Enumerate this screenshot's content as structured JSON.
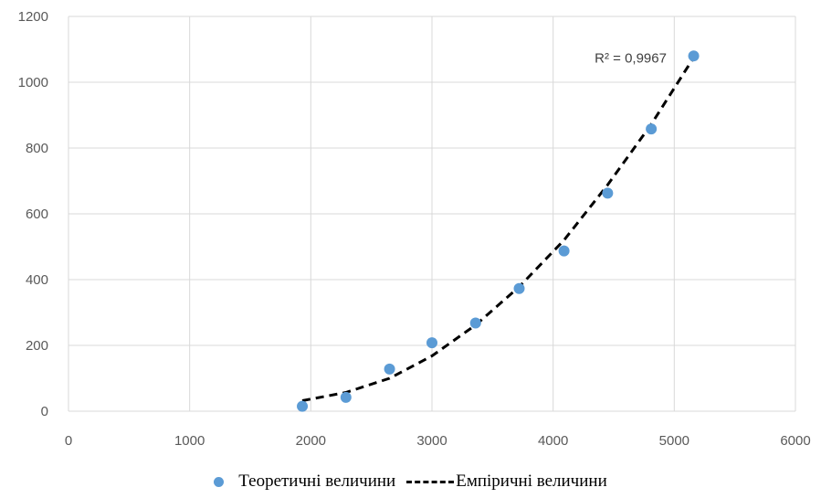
{
  "chart_data": {
    "type": "scatter",
    "xlim": [
      0,
      6000
    ],
    "ylim": [
      0,
      1200
    ],
    "x_ticks": [
      0,
      1000,
      2000,
      3000,
      4000,
      5000,
      6000
    ],
    "y_ticks": [
      0,
      200,
      400,
      600,
      800,
      1000,
      1200
    ],
    "grid": true,
    "legend_position": "bottom",
    "series": [
      {
        "name": "Теоретичні величини",
        "kind": "scatter",
        "color": "#5b9bd5",
        "points": [
          {
            "x": 1930,
            "y": 15
          },
          {
            "x": 2290,
            "y": 42
          },
          {
            "x": 2650,
            "y": 128
          },
          {
            "x": 3000,
            "y": 208
          },
          {
            "x": 3360,
            "y": 268
          },
          {
            "x": 3720,
            "y": 373
          },
          {
            "x": 4090,
            "y": 487
          },
          {
            "x": 4450,
            "y": 663
          },
          {
            "x": 4810,
            "y": 858
          },
          {
            "x": 5160,
            "y": 1080
          }
        ]
      },
      {
        "name": "Емпіричні величини",
        "kind": "trendline",
        "color": "#000000",
        "points": [
          {
            "x": 1930,
            "y": 32
          },
          {
            "x": 2290,
            "y": 57
          },
          {
            "x": 2650,
            "y": 100
          },
          {
            "x": 3000,
            "y": 168
          },
          {
            "x": 3360,
            "y": 262
          },
          {
            "x": 3720,
            "y": 378
          },
          {
            "x": 4090,
            "y": 520
          },
          {
            "x": 4450,
            "y": 688
          },
          {
            "x": 4810,
            "y": 872
          },
          {
            "x": 5160,
            "y": 1075
          }
        ]
      }
    ],
    "annotation": {
      "text": "R² = 0,9967",
      "x": 4640,
      "y": 1060
    }
  }
}
